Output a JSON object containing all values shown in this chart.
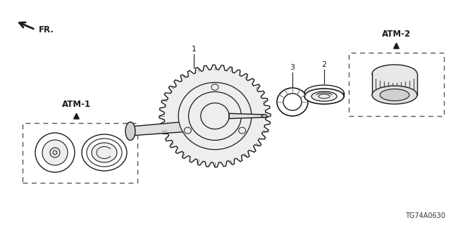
{
  "bg_color": "#ffffff",
  "figsize": [
    6.4,
    3.2
  ],
  "dpi": 100,
  "atm1_label": "ATM-1",
  "atm2_label": "ATM-2",
  "fr_label": "FR.",
  "diagram_id": "TG74A0630",
  "line_color": "#1a1a1a",
  "gray_fill": "#d8d8d8",
  "light_fill": "#eeeeee",
  "white_fill": "#ffffff"
}
